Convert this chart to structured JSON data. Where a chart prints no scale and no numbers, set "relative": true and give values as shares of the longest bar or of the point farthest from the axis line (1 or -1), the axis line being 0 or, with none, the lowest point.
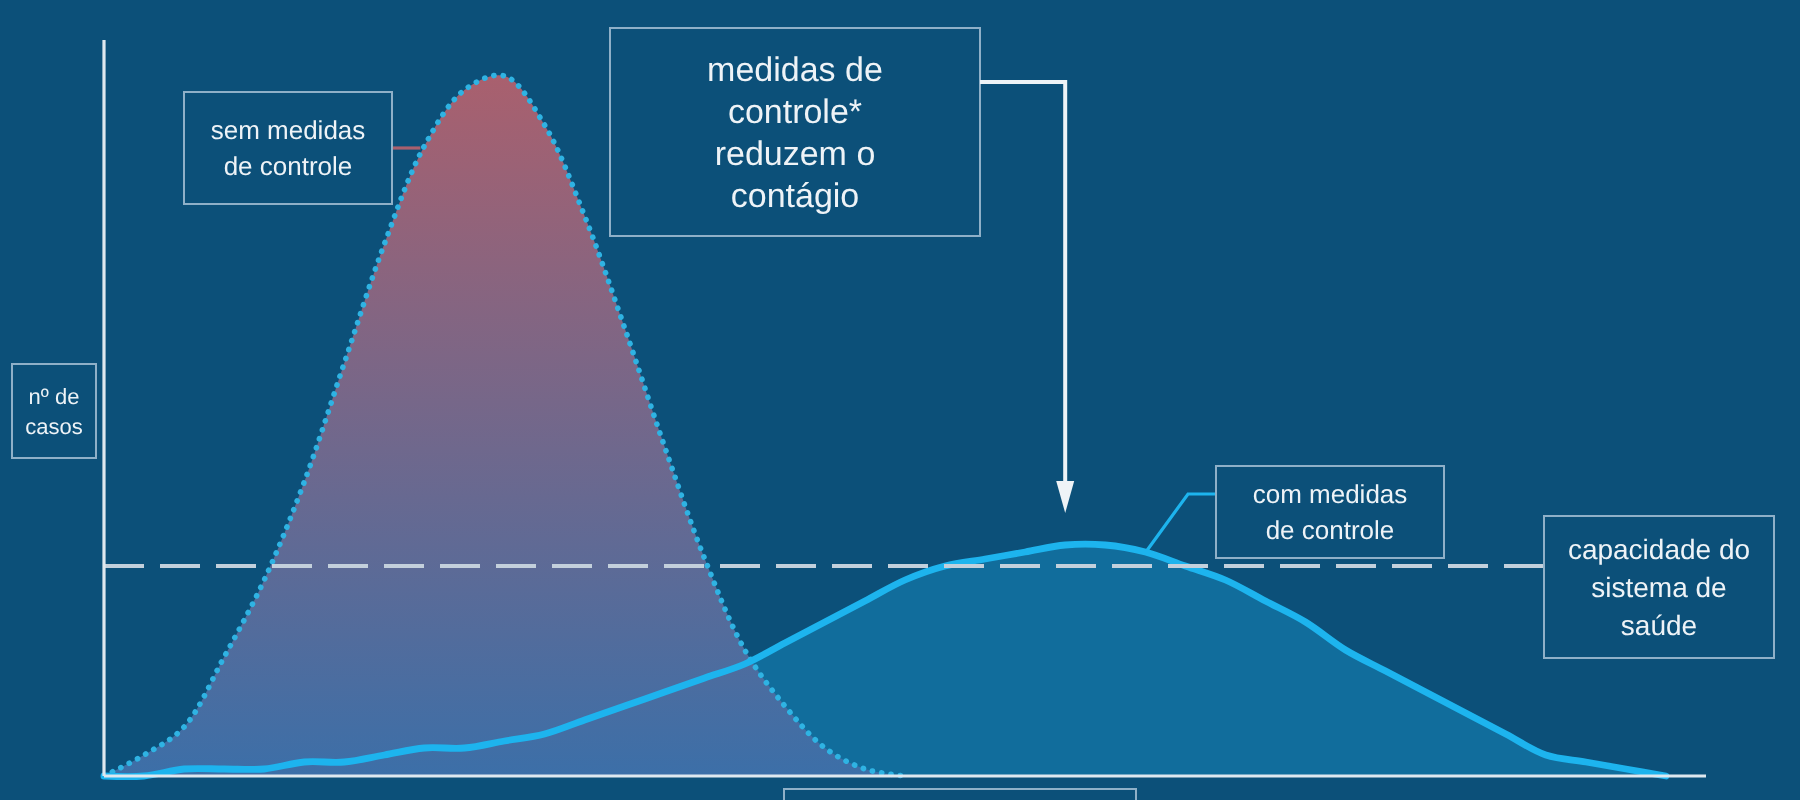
{
  "chart_data": {
    "type": "area",
    "relative": true,
    "ylabel": "nº de casos",
    "categories": [
      null,
      null,
      null,
      null,
      null,
      null,
      null,
      null,
      null,
      null,
      null,
      null,
      null,
      null,
      null,
      null,
      null,
      null,
      null,
      null,
      null,
      null,
      null,
      null,
      null,
      null,
      null,
      null,
      null,
      null,
      null,
      null,
      null,
      null,
      null,
      null,
      null,
      null,
      null,
      null,
      null
    ],
    "series": [
      {
        "name": "sem medidas de controle",
        "color": "#a9606e",
        "line_style": "dotted",
        "values": [
          0,
          0.03,
          0.07,
          0.17,
          0.28,
          0.42,
          0.59,
          0.76,
          0.9,
          0.98,
          1,
          0.93,
          0.8,
          0.64,
          0.47,
          0.31,
          0.18,
          0.1,
          0.04,
          0.01,
          0,
          null,
          null,
          null,
          null,
          null,
          null,
          null,
          null,
          null,
          null,
          null,
          null,
          null,
          null,
          null,
          null,
          null,
          null,
          null,
          null
        ]
      },
      {
        "name": "com medidas de controle",
        "color": "#1db4ee",
        "line_style": "solid",
        "values": [
          0,
          0,
          0.01,
          0.01,
          0.01,
          0.02,
          0.02,
          0.03,
          0.04,
          0.04,
          0.05,
          0.06,
          0.08,
          0.1,
          0.12,
          0.14,
          0.16,
          0.19,
          0.22,
          0.25,
          0.28,
          0.3,
          0.31,
          0.32,
          0.33,
          0.33,
          0.32,
          0.3,
          0.28,
          0.25,
          0.22,
          0.18,
          0.15,
          0.12,
          0.09,
          0.06,
          0.03,
          0.02,
          0.01,
          0,
          null
        ]
      }
    ],
    "ref_lines": [
      {
        "axis": "y",
        "value": 0.3,
        "label": "capacidade do sistema de saúde",
        "color": "#c3d0dc",
        "line_style": "dashed"
      }
    ],
    "annotations": [
      "medidas de controle* reduzem o contágio"
    ]
  }
}
